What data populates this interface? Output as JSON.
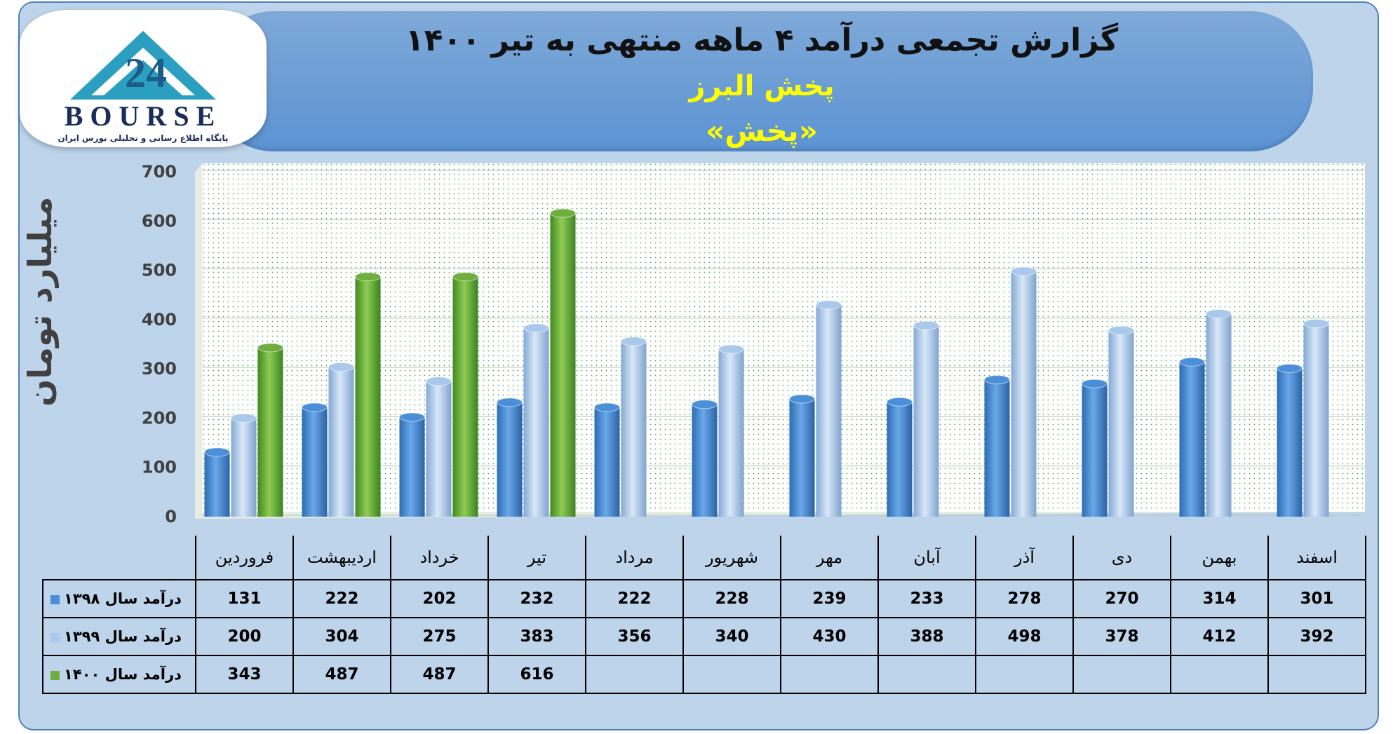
{
  "header": {
    "title": "گزارش تجمعی درآمد ۴ ماهه منتهی به تیر ۱۴۰۰",
    "subtitle": "پخش البرز",
    "symbol": "«پخش»"
  },
  "logo": {
    "text": "BOURSE",
    "caption": "پایگاه اطلاع رسانی و تحلیلی بورس ایران"
  },
  "colors": {
    "series_1398": "#4a8fd8",
    "series_1399": "#a9c8ec",
    "series_1400": "#6fae3e",
    "header_band": "#5b93d3",
    "panel_bg": "#bdd4ea"
  },
  "chart_data": {
    "type": "bar",
    "title": "گزارش تجمعی درآمد ۴ ماهه منتهی به تیر ۱۴۰۰",
    "ylabel": "میلیارد تومان",
    "xlabel": "",
    "ylim": [
      0,
      700
    ],
    "yticks": [
      0,
      100,
      200,
      300,
      400,
      500,
      600,
      700
    ],
    "grid": true,
    "legend_position": "table-left",
    "categories": [
      "فروردین",
      "اردیبهشت",
      "خرداد",
      "تیر",
      "مرداد",
      "شهریور",
      "مهر",
      "آبان",
      "آذر",
      "دی",
      "بهمن",
      "اسفند"
    ],
    "series": [
      {
        "name": "درآمد سال ۱۳۹۸",
        "color": "#4a8fd8",
        "values": [
          131,
          222,
          202,
          232,
          222,
          228,
          239,
          233,
          278,
          270,
          314,
          301
        ]
      },
      {
        "name": "درآمد سال ۱۳۹۹",
        "color": "#a9c8ec",
        "values": [
          200,
          304,
          275,
          383,
          356,
          340,
          430,
          388,
          498,
          378,
          412,
          392
        ]
      },
      {
        "name": "درآمد سال ۱۴۰۰",
        "color": "#6fae3e",
        "values": [
          343,
          487,
          487,
          616,
          null,
          null,
          null,
          null,
          null,
          null,
          null,
          null
        ]
      }
    ]
  }
}
